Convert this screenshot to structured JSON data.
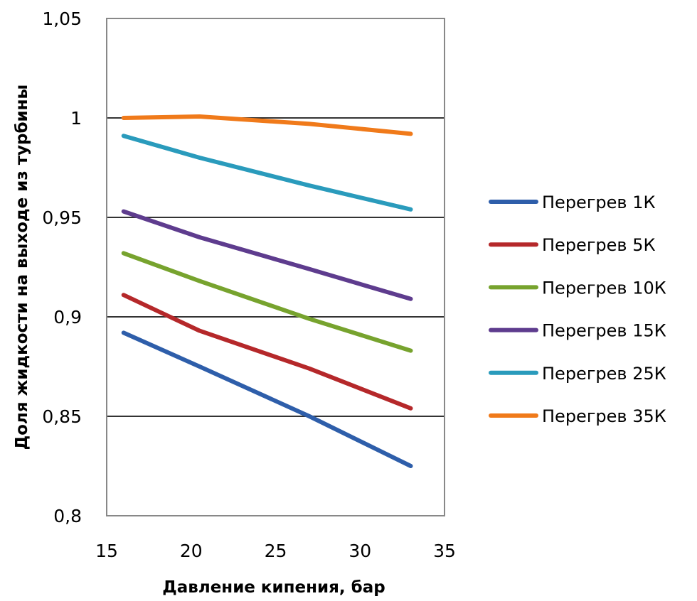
{
  "chart_data": {
    "type": "line",
    "title": "",
    "xlabel": "Давление кипения, бар",
    "ylabel": "Доля жидкости на выходе из турбины",
    "xlim": [
      15,
      35
    ],
    "ylim": [
      0.8,
      1.05
    ],
    "x_ticks": [
      "15",
      "20",
      "25",
      "30",
      "35"
    ],
    "y_ticks": [
      "0,8",
      "0,85",
      "0,9",
      "0,95",
      "1",
      "1,05"
    ],
    "grid": "horizontal",
    "legend_position": "right",
    "x": [
      16,
      20.5,
      27,
      33
    ],
    "series": [
      {
        "name": "Перегрев 1К",
        "color": "#2E5EAA",
        "values": [
          0.892,
          0.875,
          0.85,
          0.825
        ]
      },
      {
        "name": "Перегрев 5К",
        "color": "#B5282A",
        "values": [
          0.911,
          0.893,
          0.874,
          0.854
        ]
      },
      {
        "name": "Перегрев 10К",
        "color": "#77A32E",
        "values": [
          0.932,
          0.918,
          0.899,
          0.883
        ]
      },
      {
        "name": "Перегрев 15К",
        "color": "#5E3C8E",
        "values": [
          0.953,
          0.94,
          0.924,
          0.909
        ]
      },
      {
        "name": "Перегрев 25К",
        "color": "#2A9BBC",
        "values": [
          0.991,
          0.98,
          0.966,
          0.954
        ]
      },
      {
        "name": "Перегрев 35К",
        "color": "#F07A1A",
        "values": [
          1.0,
          1.0007,
          0.997,
          0.992
        ]
      }
    ]
  }
}
